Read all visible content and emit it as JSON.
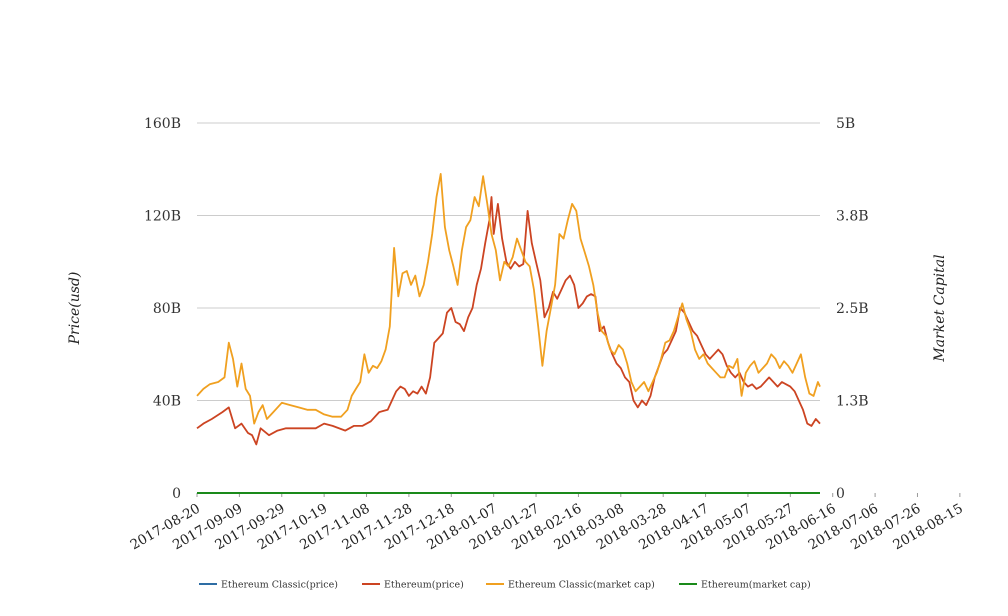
{
  "chart_data": {
    "type": "line",
    "x_tick_labels": [
      "2017-08-20",
      "2017-09-09",
      "2017-09-29",
      "2017-10-19",
      "2017-11-08",
      "2017-11-28",
      "2017-12-18",
      "2018-01-07",
      "2018-01-27",
      "2018-02-16",
      "2018-03-08",
      "2018-03-28",
      "2018-04-17",
      "2018-05-07",
      "2018-05-27",
      "2018-06-16",
      "2018-07-06",
      "2018-07-26",
      "2018-08-15"
    ],
    "y_left": {
      "label": "Price(usd)",
      "ticks": [
        "0",
        "40B",
        "80B",
        "120B",
        "160B"
      ],
      "range": [
        0,
        160
      ]
    },
    "y_right": {
      "label": "Market Capital",
      "ticks": [
        "0",
        "1.3B",
        "2.5B",
        "3.8B",
        "5B"
      ],
      "range": [
        0,
        5
      ]
    },
    "grid": true,
    "legend_position": "bottom",
    "series": [
      {
        "name": "Ethereum Classic(price)",
        "color": "#2e6da4",
        "values": []
      },
      {
        "name": "Ethereum(price)",
        "color": "#cc4422",
        "points": [
          [
            0,
            28
          ],
          [
            3,
            30
          ],
          [
            7,
            32
          ],
          [
            12,
            35
          ],
          [
            15,
            37
          ],
          [
            18,
            28
          ],
          [
            21,
            30
          ],
          [
            24,
            26
          ],
          [
            26,
            25
          ],
          [
            28,
            21
          ],
          [
            30,
            28
          ],
          [
            34,
            25
          ],
          [
            38,
            27
          ],
          [
            42,
            28
          ],
          [
            46,
            28
          ],
          [
            52,
            28
          ],
          [
            56,
            28
          ],
          [
            60,
            30
          ],
          [
            64,
            29
          ],
          [
            70,
            27
          ],
          [
            74,
            29
          ],
          [
            78,
            29
          ],
          [
            82,
            31
          ],
          [
            86,
            35
          ],
          [
            90,
            36
          ],
          [
            94,
            44
          ],
          [
            96,
            46
          ],
          [
            98,
            45
          ],
          [
            100,
            42
          ],
          [
            102,
            44
          ],
          [
            104,
            43
          ],
          [
            106,
            46
          ],
          [
            108,
            43
          ],
          [
            110,
            50
          ],
          [
            112,
            65
          ],
          [
            114,
            67
          ],
          [
            116,
            69
          ],
          [
            118,
            78
          ],
          [
            120,
            80
          ],
          [
            122,
            74
          ],
          [
            124,
            73
          ],
          [
            126,
            70
          ],
          [
            128,
            76
          ],
          [
            130,
            80
          ],
          [
            132,
            90
          ],
          [
            134,
            97
          ],
          [
            136,
            108
          ],
          [
            138,
            118
          ],
          [
            139,
            128
          ],
          [
            140,
            112
          ],
          [
            142,
            125
          ],
          [
            144,
            110
          ],
          [
            146,
            100
          ],
          [
            148,
            97
          ],
          [
            150,
            100
          ],
          [
            152,
            98
          ],
          [
            154,
            99
          ],
          [
            156,
            122
          ],
          [
            158,
            108
          ],
          [
            160,
            100
          ],
          [
            162,
            92
          ],
          [
            164,
            76
          ],
          [
            166,
            80
          ],
          [
            168,
            87
          ],
          [
            170,
            84
          ],
          [
            172,
            88
          ],
          [
            174,
            92
          ],
          [
            176,
            94
          ],
          [
            178,
            90
          ],
          [
            180,
            80
          ],
          [
            182,
            82
          ],
          [
            184,
            85
          ],
          [
            186,
            86
          ],
          [
            188,
            85
          ],
          [
            190,
            70
          ],
          [
            192,
            72
          ],
          [
            194,
            65
          ],
          [
            196,
            60
          ],
          [
            198,
            56
          ],
          [
            200,
            54
          ],
          [
            202,
            50
          ],
          [
            204,
            48
          ],
          [
            206,
            40
          ],
          [
            208,
            37
          ],
          [
            210,
            40
          ],
          [
            212,
            38
          ],
          [
            214,
            42
          ],
          [
            216,
            50
          ],
          [
            218,
            55
          ],
          [
            220,
            60
          ],
          [
            222,
            62
          ],
          [
            224,
            66
          ],
          [
            226,
            70
          ],
          [
            228,
            80
          ],
          [
            230,
            78
          ],
          [
            232,
            74
          ],
          [
            234,
            70
          ],
          [
            236,
            68
          ],
          [
            238,
            64
          ],
          [
            240,
            60
          ],
          [
            242,
            58
          ],
          [
            244,
            60
          ],
          [
            246,
            62
          ],
          [
            248,
            60
          ],
          [
            250,
            55
          ],
          [
            252,
            52
          ],
          [
            254,
            50
          ],
          [
            256,
            52
          ],
          [
            258,
            48
          ],
          [
            260,
            46
          ],
          [
            262,
            47
          ],
          [
            264,
            45
          ],
          [
            266,
            46
          ],
          [
            268,
            48
          ],
          [
            270,
            50
          ],
          [
            272,
            48
          ],
          [
            274,
            46
          ],
          [
            276,
            48
          ],
          [
            278,
            47
          ],
          [
            280,
            46
          ],
          [
            282,
            44
          ],
          [
            284,
            40
          ],
          [
            286,
            36
          ],
          [
            288,
            30
          ],
          [
            290,
            29
          ],
          [
            292,
            32
          ],
          [
            294,
            30
          ]
        ]
      },
      {
        "name": "Ethereum Classic(market cap)",
        "color": "#f0a020",
        "points": [
          [
            0,
            42
          ],
          [
            3,
            45
          ],
          [
            6,
            47
          ],
          [
            10,
            48
          ],
          [
            13,
            50
          ],
          [
            15,
            65
          ],
          [
            17,
            58
          ],
          [
            19,
            46
          ],
          [
            21,
            56
          ],
          [
            23,
            45
          ],
          [
            25,
            42
          ],
          [
            27,
            30
          ],
          [
            29,
            35
          ],
          [
            31,
            38
          ],
          [
            33,
            32
          ],
          [
            36,
            35
          ],
          [
            40,
            39
          ],
          [
            44,
            38
          ],
          [
            48,
            37
          ],
          [
            52,
            36
          ],
          [
            56,
            36
          ],
          [
            60,
            34
          ],
          [
            64,
            33
          ],
          [
            68,
            33
          ],
          [
            71,
            36
          ],
          [
            73,
            42
          ],
          [
            75,
            45
          ],
          [
            77,
            48
          ],
          [
            79,
            60
          ],
          [
            81,
            52
          ],
          [
            83,
            55
          ],
          [
            85,
            54
          ],
          [
            87,
            57
          ],
          [
            89,
            62
          ],
          [
            91,
            72
          ],
          [
            93,
            106
          ],
          [
            95,
            85
          ],
          [
            97,
            95
          ],
          [
            99,
            96
          ],
          [
            101,
            90
          ],
          [
            103,
            94
          ],
          [
            105,
            85
          ],
          [
            107,
            90
          ],
          [
            109,
            100
          ],
          [
            111,
            112
          ],
          [
            113,
            128
          ],
          [
            115,
            138
          ],
          [
            117,
            115
          ],
          [
            119,
            105
          ],
          [
            121,
            98
          ],
          [
            123,
            90
          ],
          [
            125,
            105
          ],
          [
            127,
            115
          ],
          [
            129,
            118
          ],
          [
            131,
            128
          ],
          [
            133,
            124
          ],
          [
            135,
            137
          ],
          [
            137,
            125
          ],
          [
            139,
            112
          ],
          [
            141,
            105
          ],
          [
            143,
            92
          ],
          [
            145,
            100
          ],
          [
            147,
            98
          ],
          [
            149,
            102
          ],
          [
            151,
            110
          ],
          [
            153,
            105
          ],
          [
            155,
            100
          ],
          [
            157,
            98
          ],
          [
            159,
            88
          ],
          [
            161,
            72
          ],
          [
            163,
            55
          ],
          [
            165,
            70
          ],
          [
            167,
            80
          ],
          [
            169,
            90
          ],
          [
            171,
            112
          ],
          [
            173,
            110
          ],
          [
            175,
            118
          ],
          [
            177,
            125
          ],
          [
            179,
            122
          ],
          [
            181,
            110
          ],
          [
            183,
            104
          ],
          [
            185,
            98
          ],
          [
            187,
            90
          ],
          [
            189,
            78
          ],
          [
            191,
            70
          ],
          [
            193,
            68
          ],
          [
            195,
            62
          ],
          [
            197,
            60
          ],
          [
            199,
            64
          ],
          [
            201,
            62
          ],
          [
            203,
            56
          ],
          [
            205,
            48
          ],
          [
            207,
            44
          ],
          [
            209,
            46
          ],
          [
            211,
            48
          ],
          [
            213,
            44
          ],
          [
            215,
            48
          ],
          [
            217,
            52
          ],
          [
            219,
            58
          ],
          [
            221,
            65
          ],
          [
            223,
            66
          ],
          [
            225,
            70
          ],
          [
            227,
            76
          ],
          [
            229,
            82
          ],
          [
            231,
            75
          ],
          [
            233,
            70
          ],
          [
            235,
            62
          ],
          [
            237,
            58
          ],
          [
            239,
            60
          ],
          [
            241,
            56
          ],
          [
            243,
            54
          ],
          [
            245,
            52
          ],
          [
            247,
            50
          ],
          [
            249,
            50
          ],
          [
            251,
            55
          ],
          [
            253,
            54
          ],
          [
            255,
            58
          ],
          [
            257,
            42
          ],
          [
            259,
            52
          ],
          [
            261,
            55
          ],
          [
            263,
            57
          ],
          [
            265,
            52
          ],
          [
            267,
            54
          ],
          [
            269,
            56
          ],
          [
            271,
            60
          ],
          [
            273,
            58
          ],
          [
            275,
            54
          ],
          [
            277,
            57
          ],
          [
            279,
            55
          ],
          [
            281,
            52
          ],
          [
            283,
            56
          ],
          [
            285,
            60
          ],
          [
            287,
            50
          ],
          [
            289,
            43
          ],
          [
            291,
            42
          ],
          [
            293,
            48
          ],
          [
            294,
            46
          ]
        ]
      },
      {
        "name": "Ethereum(market cap)",
        "color": "#1a8a1a",
        "values": [
          0
        ]
      }
    ]
  }
}
